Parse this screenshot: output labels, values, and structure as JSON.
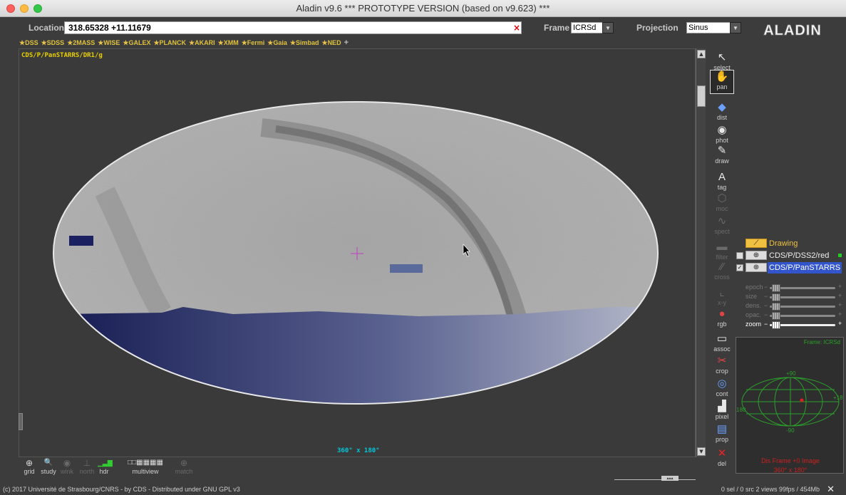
{
  "window": {
    "title": "Aladin v9.6   *** PROTOTYPE VERSION (based on v9.623) ***"
  },
  "toolbar": {
    "location_label": "Location",
    "location_value": "318.65328 +11.11679",
    "clear_icon": "close-icon",
    "clear_text": "×",
    "frame_label": "Frame",
    "frame_value": "ICRSd",
    "projection_label": "Projection",
    "projection_value": "Sinus",
    "logo_text": "ALADIN",
    "dropdown_arrow": "▼"
  },
  "surveys": {
    "items": [
      "DSS",
      "SDSS",
      "2MASS",
      "WISE",
      "GALEX",
      "PLANCK",
      "AKARI",
      "XMM",
      "Fermi",
      "Gaia",
      "Simbad",
      "NED"
    ],
    "add": "+",
    "star": "★"
  },
  "view": {
    "layer_label": "CDS/P/PanSTARRS/DR1/g",
    "fov_label": "360° x 180°",
    "colors": {
      "sky_gray": "#b0b0b0",
      "blue_gradient_dark": "#141a50",
      "blue_gradient_light": "#b0b6c8",
      "reticle": "#c040c0"
    }
  },
  "tools": [
    {
      "label": "select",
      "icon": "select-arrow-icon",
      "glyph": "↖",
      "enabled": true
    },
    {
      "label": "pan",
      "icon": "hand-icon",
      "glyph": "✋",
      "enabled": true,
      "selected": true
    },
    {
      "label": "dist",
      "icon": "distance-icon",
      "glyph": "◆",
      "enabled": true
    },
    {
      "label": "phot",
      "icon": "photometry-icon",
      "glyph": "◉",
      "enabled": true
    },
    {
      "label": "draw",
      "icon": "pencil-icon",
      "glyph": "✎",
      "enabled": true
    },
    {
      "label": "tag",
      "icon": "tag-icon",
      "glyph": "A",
      "enabled": true
    },
    {
      "label": "moc",
      "icon": "moc-icon",
      "glyph": "⬡",
      "enabled": false
    },
    {
      "label": "spect",
      "icon": "spectrum-icon",
      "glyph": "∿",
      "enabled": false
    },
    {
      "label": "filter",
      "icon": "filter-icon",
      "glyph": "▬",
      "enabled": false
    },
    {
      "label": "cross",
      "icon": "cross-icon",
      "glyph": "⁄⁄",
      "enabled": false
    },
    {
      "label": "x-y",
      "icon": "xy-icon",
      "glyph": "⌞",
      "enabled": false
    },
    {
      "label": "rgb",
      "icon": "rgb-icon",
      "glyph": "●",
      "enabled": true
    },
    {
      "label": "assoc",
      "icon": "assoc-icon",
      "glyph": "▭",
      "enabled": true
    },
    {
      "label": "crop",
      "icon": "scissors-icon",
      "glyph": "✂",
      "enabled": true
    },
    {
      "label": "cont",
      "icon": "contour-icon",
      "glyph": "◎",
      "enabled": true
    },
    {
      "label": "pixel",
      "icon": "pixel-icon",
      "glyph": "▟",
      "enabled": true
    },
    {
      "label": "prop",
      "icon": "properties-icon",
      "glyph": "▤",
      "enabled": true
    },
    {
      "label": "del",
      "icon": "delete-icon",
      "glyph": "✕",
      "enabled": true
    }
  ],
  "layers": [
    {
      "name": "Drawing",
      "checked": false
    },
    {
      "name": "CDS/P/DSS2/red",
      "checked": false
    },
    {
      "name": "CDS/P/PanSTARRS",
      "checked": true,
      "selected": true
    }
  ],
  "sliders": [
    {
      "label": "epoch",
      "value": 0.05,
      "enabled": false
    },
    {
      "label": "size",
      "value": 0.05,
      "enabled": false
    },
    {
      "label": "dens.",
      "value": 0.05,
      "enabled": false
    },
    {
      "label": "opac.",
      "value": 0.05,
      "enabled": false
    },
    {
      "label": "zoom",
      "value": 0.05,
      "enabled": true
    }
  ],
  "slider_minus": "−",
  "slider_plus": "+",
  "miniview": {
    "frame_label": "Frame: ICRSd",
    "lat_top": "+90",
    "lat_bottom": "-90",
    "lon_left": "180",
    "lon_right": "+18",
    "status_text": "Dis Frame +0 Image",
    "fov": "360° x 180°"
  },
  "bottom_tools": [
    {
      "label": "grid",
      "icon": "grid-icon",
      "glyph": "⊕",
      "enabled": true
    },
    {
      "label": "study",
      "icon": "magnifier-icon",
      "glyph": "🔍",
      "enabled": true
    },
    {
      "label": "wink",
      "icon": "eye-icon",
      "glyph": "◉",
      "enabled": false
    },
    {
      "label": "north",
      "icon": "north-icon",
      "glyph": "⊥",
      "enabled": false
    },
    {
      "label": "hdr",
      "icon": "histogram-icon",
      "glyph": "▁▃▇",
      "enabled": true
    },
    {
      "label": "multiview",
      "icon": "multiview-icon",
      "glyph": "",
      "enabled": true
    },
    {
      "label": "match",
      "icon": "match-icon",
      "glyph": "⊕",
      "enabled": false
    }
  ],
  "multiview_glyph": "□□▦▦▦▦",
  "footer": {
    "copyright": "(c) 2017 Université de Strasbourg/CNRS - by CDS - Distributed under GNU GPL v3",
    "status": "0 sel / 0 src   2 views   99fps / 454Mb"
  }
}
